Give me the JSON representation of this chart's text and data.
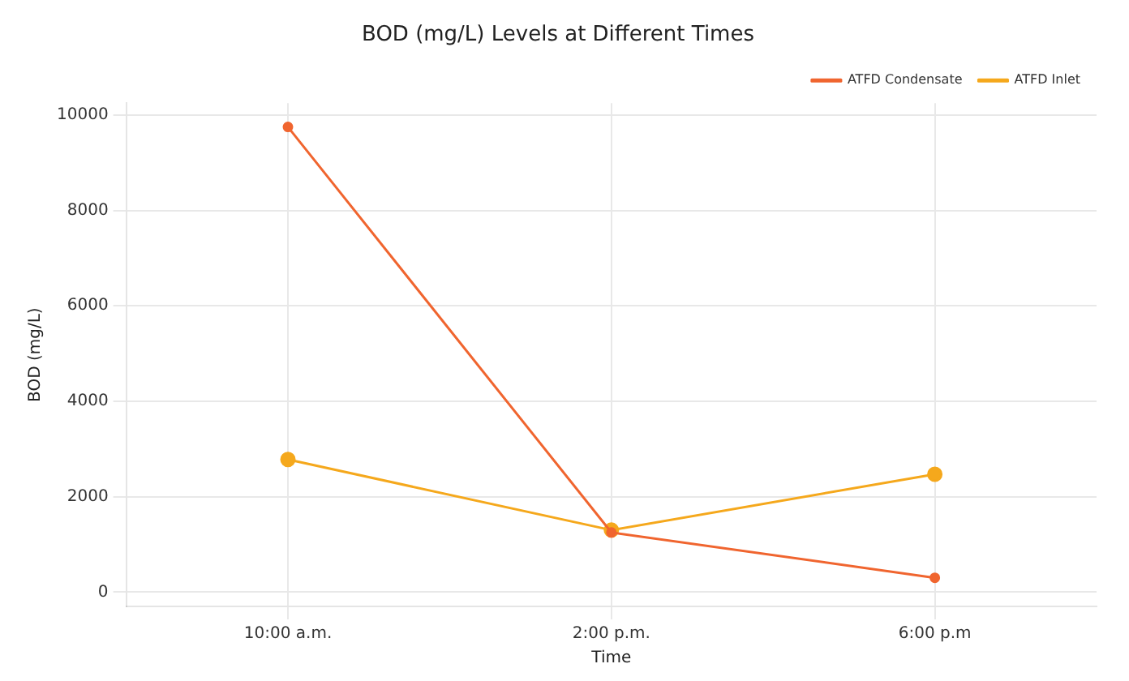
{
  "chart_data": {
    "type": "line",
    "title": "BOD (mg/L) Levels at Different Times",
    "xlabel": "Time",
    "ylabel": "BOD (mg/L)",
    "categories": [
      "10:00 a.m.",
      "2:00 p.m.",
      "6:00 p.m"
    ],
    "series": [
      {
        "name": "ATFD Inlet",
        "color": "#f5a81c",
        "values": [
          2780,
          1300,
          2470
        ]
      },
      {
        "name": "ATFD Condensate",
        "color": "#f0652f",
        "values": [
          9750,
          1250,
          300
        ]
      }
    ],
    "ylim": [
      -300,
      10250
    ],
    "yticks": [
      0,
      2000,
      4000,
      6000,
      8000,
      10000
    ],
    "grid": true,
    "legend": "top right",
    "marker": "circle",
    "line_style": "solid"
  }
}
